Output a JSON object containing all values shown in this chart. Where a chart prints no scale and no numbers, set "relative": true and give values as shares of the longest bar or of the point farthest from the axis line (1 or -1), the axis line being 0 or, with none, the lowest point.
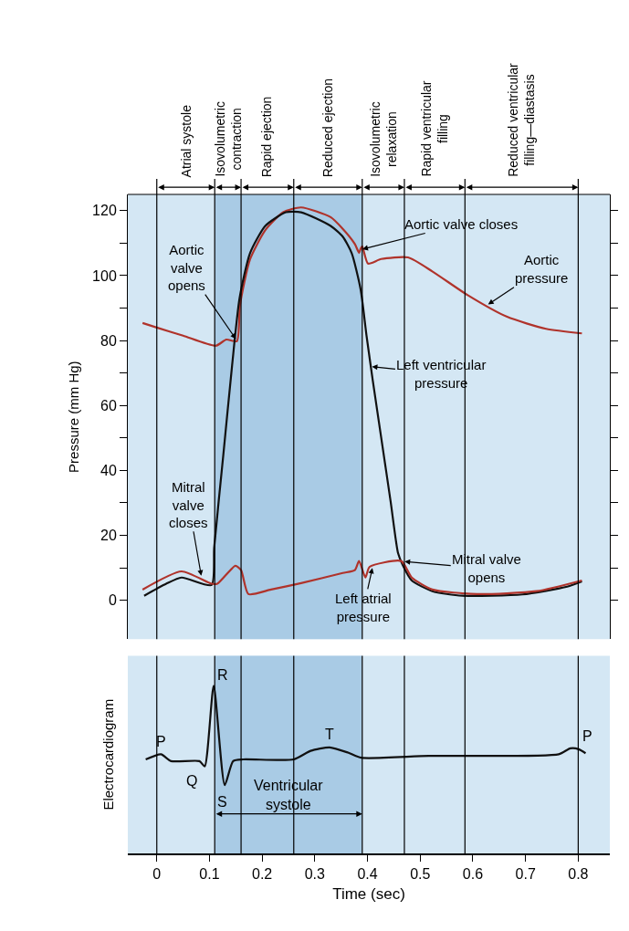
{
  "chart_data": [
    {
      "type": "line",
      "ylabel": "Pressure (mm Hg)",
      "xlim": [
        -0.055,
        0.86
      ],
      "ylim": [
        -12,
        125
      ],
      "yticks": [
        0,
        {
          "value": 10,
          "label": null
        },
        20,
        {
          "value": 30,
          "label": null
        },
        40,
        {
          "value": 50,
          "label": null
        },
        60,
        {
          "value": 70,
          "label": null
        },
        80,
        {
          "value": 90,
          "label": null
        },
        100,
        {
          "value": 110,
          "label": null
        },
        120
      ],
      "tick_labels": "y",
      "series": [
        {
          "color": "#b0332b",
          "x": [
            -0.027,
            0.0,
            0.05,
            0.112,
            0.132,
            0.152,
            0.158,
            0.177,
            0.206,
            0.24,
            0.274,
            0.33,
            0.353,
            0.376,
            0.384,
            0.387,
            0.39,
            0.401,
            0.426,
            0.477,
            0.523,
            0.591,
            0.665,
            0.739,
            0.807
          ],
          "values": [
            85.4,
            84,
            81.5,
            78.4,
            80.3,
            79.8,
            91,
            105,
            114,
            119.5,
            121,
            118,
            114.4,
            109.7,
            107,
            108.3,
            109,
            103.7,
            105.1,
            105.6,
            101.3,
            93.9,
            87.3,
            83.6,
            82.2
          ]
        },
        {
          "color": "#111111",
          "x": [
            -0.024,
            0.018,
            0.047,
            0.104,
            0.109,
            0.126,
            0.143,
            0.157,
            0.177,
            0.206,
            0.245,
            0.274,
            0.33,
            0.353,
            0.37,
            0.387,
            0.398,
            0.41,
            0.427,
            0.444,
            0.458,
            0.467,
            0.484,
            0.523,
            0.58,
            0.694,
            0.779,
            0.807
          ],
          "values": [
            1.4,
            5.1,
            7,
            4.7,
            16.3,
            44.3,
            72.4,
            92.9,
            106.9,
            115.3,
            119.5,
            119.5,
            115.3,
            112,
            106.9,
            95.7,
            81.7,
            67.7,
            49,
            30.3,
            14.5,
            10.8,
            6.1,
            2.8,
            1.4,
            1.8,
            4.2,
            5.8
          ]
        },
        {
          "color": "#b0332b",
          "x": [
            -0.027,
            0.047,
            0.104,
            0.115,
            0.149,
            0.16,
            0.174,
            0.217,
            0.274,
            0.353,
            0.376,
            0.384,
            0.396,
            0.404,
            0.464,
            0.484,
            0.523,
            0.608,
            0.721,
            0.807
          ],
          "values": [
            3.3,
            8.9,
            5.1,
            5.1,
            10.6,
            9.3,
            1.9,
            3.3,
            5.3,
            8.4,
            9.3,
            12.1,
            7,
            10.3,
            12.1,
            7,
            3.3,
            1.9,
            2.8,
            6.1
          ]
        }
      ],
      "bands": [
        {
          "axis": "x",
          "from": 0,
          "to": 0.11,
          "label": "Atrial systole",
          "color": "#d4e7f4"
        },
        {
          "axis": "x",
          "from": 0.11,
          "to": 0.16,
          "label": "Isovolumetric contraction",
          "color": "#a9cbe5"
        },
        {
          "axis": "x",
          "from": 0.16,
          "to": 0.26,
          "label": "Rapid ejection",
          "color": "#a9cbe5"
        },
        {
          "axis": "x",
          "from": 0.26,
          "to": 0.39,
          "label": "Reduced ejection",
          "color": "#a9cbe5"
        },
        {
          "axis": "x",
          "from": 0.39,
          "to": 0.47,
          "label": "Isovolumetric relaxation",
          "color": "#d4e7f4"
        },
        {
          "axis": "x",
          "from": 0.47,
          "to": 0.585,
          "label": "Rapid ventricular filling",
          "color": "#d4e7f4"
        },
        {
          "axis": "x",
          "from": 0.585,
          "to": 0.8,
          "label": "Reduced ventricular filling—diastasis",
          "color": "#d4e7f4"
        }
      ],
      "annotations": [
        {
          "text": "Aortic valve opens",
          "x": 0.152,
          "y": 80
        },
        {
          "text": "Aortic valve closes",
          "x": 0.387,
          "y": 108
        },
        {
          "text": "Aortic pressure",
          "x": 0.626,
          "y": 90.8
        },
        {
          "text": "Left ventricular pressure",
          "x": 0.405,
          "y": 72
        },
        {
          "text": "Mitral valve closes",
          "x": 0.085,
          "y": 7
        },
        {
          "text": "Mitral valve opens",
          "x": 0.467,
          "y": 12
        },
        {
          "text": "Left atrial pressure",
          "x": 0.41,
          "y": 10.5
        }
      ]
    },
    {
      "type": "line",
      "relative": true,
      "xlabel": "Time (sec)",
      "ylabel": "Electrocardiogram",
      "xlim": [
        -0.055,
        0.86
      ],
      "xticks": [
        0,
        0.1,
        0.2,
        0.3,
        0.4,
        0.5,
        0.6,
        0.7,
        0.8
      ],
      "tick_labels": "x",
      "series": [
        {
          "color": "#111111",
          "x": [
            -0.021,
            0.008,
            0.027,
            0.081,
            0.091,
            0.108,
            0.129,
            0.145,
            0.164,
            0.26,
            0.292,
            0.328,
            0.363,
            0.388,
            0.516,
            0.763,
            0.785,
            0.801,
            0.814
          ],
          "values": [
            0.561,
            0.592,
            0.551,
            0.551,
            0.52,
            1,
            0.408,
            0.551,
            0.561,
            0.561,
            0.612,
            0.633,
            0.602,
            0.571,
            0.582,
            0.592,
            0.627,
            0.622,
            0.598
          ]
        }
      ],
      "bands": [
        {
          "axis": "x",
          "from": 0.11,
          "to": 0.39,
          "label": "Ventricular systole",
          "color": "#a9cbe5"
        }
      ],
      "ref_lines": [
        {
          "axis": "x",
          "value": 0
        },
        {
          "axis": "x",
          "value": 0.11
        },
        {
          "axis": "x",
          "value": 0.16
        },
        {
          "axis": "x",
          "value": 0.26
        },
        {
          "axis": "x",
          "value": 0.39
        },
        {
          "axis": "x",
          "value": 0.47
        },
        {
          "axis": "x",
          "value": 0.585
        },
        {
          "axis": "x",
          "value": 0.8
        }
      ],
      "annotations": [
        {
          "text": "P",
          "x": 0.008,
          "y": 0.592
        },
        {
          "text": "Q",
          "x": 0.091,
          "y": 0.52
        },
        {
          "text": "R",
          "x": 0.108,
          "y": 1
        },
        {
          "text": "S",
          "x": 0.129,
          "y": 0.408
        },
        {
          "text": "T",
          "x": 0.328,
          "y": 0.633
        },
        {
          "text": "P",
          "x": 0.801,
          "y": 0.622
        }
      ]
    }
  ]
}
